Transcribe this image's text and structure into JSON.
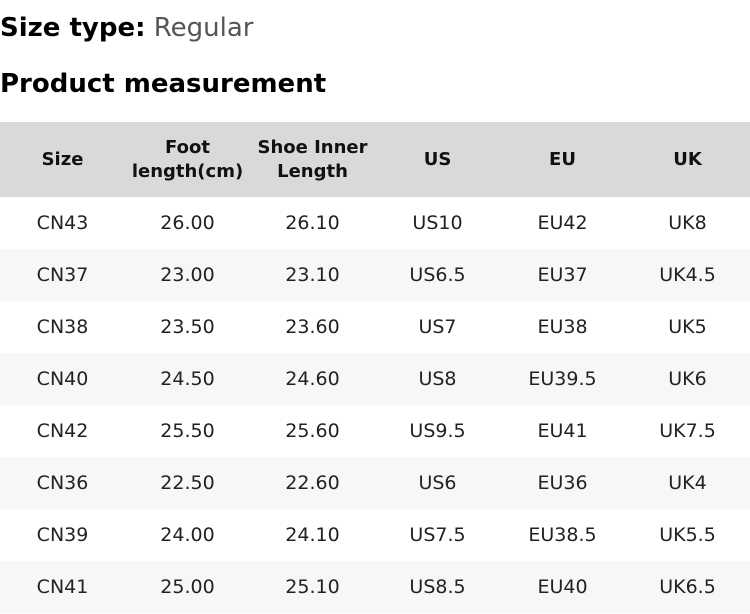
{
  "size_type": {
    "label": "Size type:",
    "value": "Regular"
  },
  "section_title": "Product measurement",
  "table": {
    "headers": [
      "Size",
      "Foot length(cm)",
      "Shoe Inner Length",
      "US",
      "EU",
      "UK"
    ],
    "rows": [
      [
        "CN43",
        "26.00",
        "26.10",
        "US10",
        "EU42",
        "UK8"
      ],
      [
        "CN37",
        "23.00",
        "23.10",
        "US6.5",
        "EU37",
        "UK4.5"
      ],
      [
        "CN38",
        "23.50",
        "23.60",
        "US7",
        "EU38",
        "UK5"
      ],
      [
        "CN40",
        "24.50",
        "24.60",
        "US8",
        "EU39.5",
        "UK6"
      ],
      [
        "CN42",
        "25.50",
        "25.60",
        "US9.5",
        "EU41",
        "UK7.5"
      ],
      [
        "CN36",
        "22.50",
        "22.60",
        "US6",
        "EU36",
        "UK4"
      ],
      [
        "CN39",
        "24.00",
        "24.10",
        "US7.5",
        "EU38.5",
        "UK5.5"
      ],
      [
        "CN41",
        "25.00",
        "25.10",
        "US8.5",
        "EU40",
        "UK6.5"
      ]
    ]
  },
  "colors": {
    "header_bg": "#d9d9d9",
    "stripe_bg": "#f7f7f7",
    "value_text": "#555555"
  }
}
